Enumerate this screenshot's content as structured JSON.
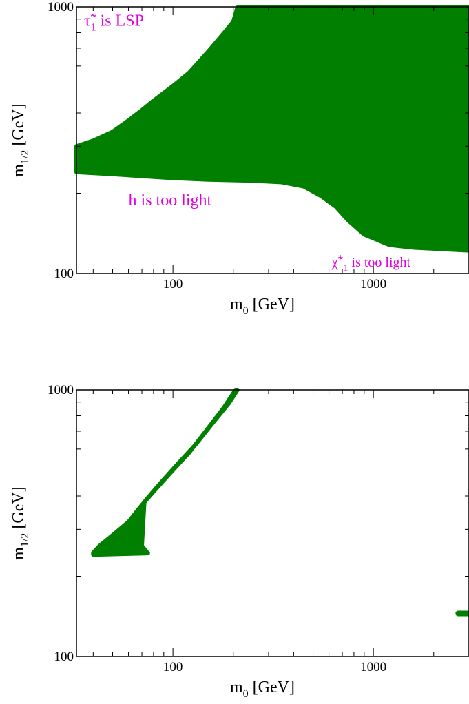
{
  "chart_data": [
    {
      "type": "scatter",
      "title": "",
      "xlabel": "m_0 [GeV]",
      "ylabel": "m_1/2 [GeV]",
      "xlabel_main": "m",
      "xlabel_sub": "0",
      "xlabel_unit": " [GeV]",
      "ylabel_main": "m",
      "ylabel_sub": "1/2",
      "ylabel_unit": " [GeV]",
      "xscale": "log",
      "yscale": "log",
      "xlim": [
        33,
        3000
      ],
      "ylim": [
        100,
        1000
      ],
      "xticks": [
        {
          "value": 100,
          "label": "100"
        },
        {
          "value": 1000,
          "label": "1000"
        }
      ],
      "yticks": [
        {
          "value": 100,
          "label": "100"
        },
        {
          "value": 1000,
          "label": "1000"
        }
      ],
      "grid": false,
      "color": "#007f00",
      "annotation_color": "#e000e0",
      "series": [
        {
          "region": "allowed",
          "points": [
            [
              33,
              245
            ],
            [
              33,
              300
            ],
            [
              40,
              315
            ],
            [
              50,
              340
            ],
            [
              60,
              375
            ],
            [
              70,
              410
            ],
            [
              80,
              445
            ],
            [
              100,
              505
            ],
            [
              120,
              565
            ],
            [
              150,
              680
            ],
            [
              175,
              780
            ],
            [
              200,
              880
            ],
            [
              210,
              1000
            ],
            [
              3000,
              1000
            ],
            [
              3000,
              122
            ],
            [
              1600,
              125
            ],
            [
              1200,
              128
            ],
            [
              900,
              140
            ],
            [
              750,
              158
            ],
            [
              650,
              178
            ],
            [
              550,
              195
            ],
            [
              450,
              212
            ],
            [
              350,
              220
            ],
            [
              250,
              223
            ],
            [
              150,
              225
            ],
            [
              100,
              228
            ],
            [
              70,
              232
            ],
            [
              50,
              236
            ],
            [
              33,
              240
            ]
          ]
        }
      ],
      "annotations": [
        {
          "main": "τ̃",
          "sub": "1",
          "rest": "  is LSP",
          "x": 36,
          "y": 850
        },
        {
          "main": "h is too light",
          "x": 60,
          "y": 180
        },
        {
          "main": "χ̃",
          "sup": "+",
          "sub": "1",
          "rest": " is too light",
          "x": 620,
          "y": 106
        }
      ]
    },
    {
      "type": "scatter",
      "title": "",
      "xlabel": "m_0 [GeV]",
      "ylabel": "m_1/2 [GeV]",
      "xlabel_main": "m",
      "xlabel_sub": "0",
      "xlabel_unit": " [GeV]",
      "ylabel_main": "m",
      "ylabel_sub": "1/2",
      "ylabel_unit": " [GeV]",
      "xscale": "log",
      "yscale": "log",
      "xlim": [
        33,
        3000
      ],
      "ylim": [
        100,
        1000
      ],
      "xticks": [
        {
          "value": 100,
          "label": "100"
        },
        {
          "value": 1000,
          "label": "1000"
        }
      ],
      "yticks": [
        {
          "value": 100,
          "label": "100"
        },
        {
          "value": 1000,
          "label": "1000"
        }
      ],
      "grid": false,
      "color": "#007f00",
      "series": [
        {
          "region": "allowed-strip",
          "points": [
            [
              40,
              245
            ],
            [
              43,
              260
            ],
            [
              50,
              285
            ],
            [
              60,
              320
            ],
            [
              70,
              370
            ],
            [
              80,
              415
            ],
            [
              100,
              500
            ],
            [
              120,
              580
            ],
            [
              150,
              720
            ],
            [
              180,
              860
            ],
            [
              205,
              1000
            ],
            [
              210,
              1000
            ],
            [
              190,
              890
            ],
            [
              160,
              760
            ],
            [
              130,
              625
            ],
            [
              105,
              525
            ],
            [
              85,
              440
            ],
            [
              72,
              380
            ],
            [
              70,
              260
            ],
            [
              75,
              244
            ],
            [
              40,
              241
            ]
          ]
        },
        {
          "region": "allowed-island",
          "points": [
            [
              2650,
              145
            ],
            [
              2950,
              145
            ]
          ]
        }
      ],
      "annotations": []
    }
  ]
}
